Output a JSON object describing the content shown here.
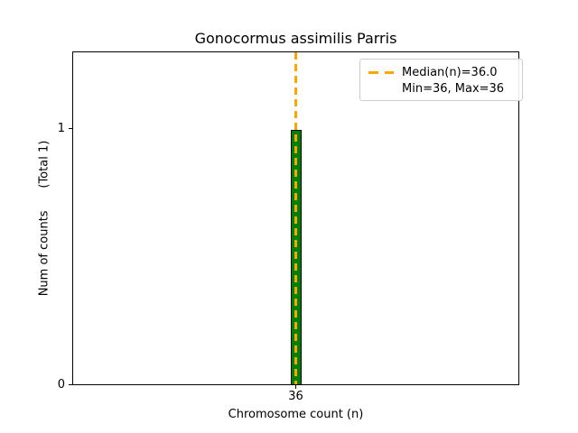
{
  "chart_data": {
    "type": "bar",
    "title": "Gonocormus assimilis Parris",
    "xlabel": "Chromosome count (n)",
    "ylabel": "Num of counts      (Total 1)",
    "categories": [
      36
    ],
    "values": [
      1
    ],
    "total_counts": 1,
    "median": 36.0,
    "min": 36,
    "max": 36,
    "xticks": [
      "36"
    ],
    "yticks": [
      "0",
      "1"
    ],
    "ylim": [
      0,
      1.3
    ],
    "grid": "off",
    "legend_position": "upper right",
    "legend": {
      "median_label": "Median(n)=36.0",
      "minmax_label": "Min=36, Max=36"
    },
    "colors": {
      "bar_fill": "#008000",
      "bar_edge": "#000000",
      "median_line": "#FFA500",
      "axes": "#000000",
      "legend_border": "#cccccc",
      "background": "#ffffff"
    }
  }
}
